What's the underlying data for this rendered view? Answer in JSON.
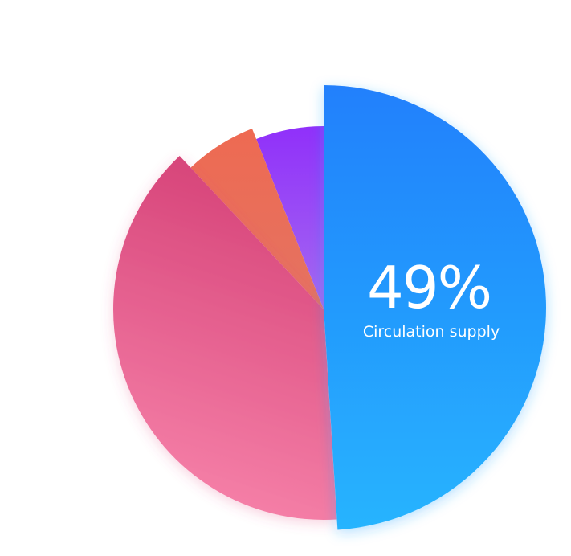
{
  "chart_data": {
    "type": "pie",
    "slices": [
      {
        "value": 49,
        "color_start": "#2080fc",
        "color_end": "#27b4fe"
      },
      {
        "value": 39,
        "color_start": "#d54177",
        "color_end": "#f783aa"
      },
      {
        "value": 6,
        "color_start": "#ee6a52",
        "color_end": "#e47362"
      },
      {
        "value": 6,
        "color_start": "#9030fa",
        "color_end": "#a46af0"
      }
    ],
    "highlight": {
      "value_text": "49%",
      "label": "Circulation supply"
    }
  }
}
